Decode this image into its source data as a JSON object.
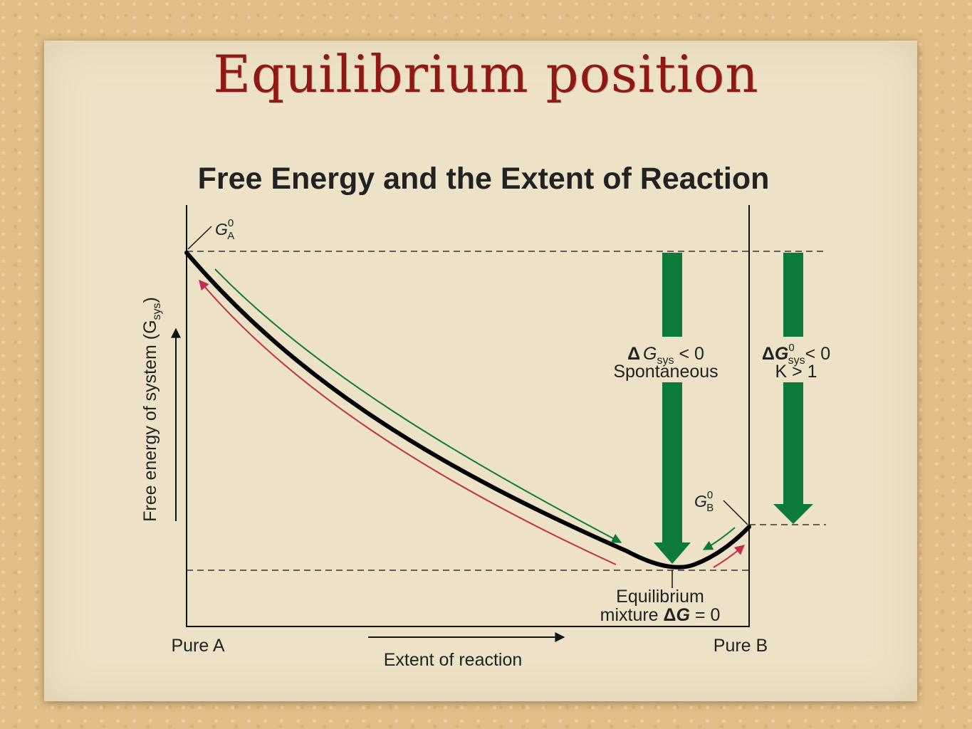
{
  "slide": {
    "title": "Equilibrium position"
  },
  "diagram": {
    "heading": "Free Energy and the Extent of Reaction",
    "y_axis_label": "Free energy of system (G",
    "y_axis_label_sub": "sys",
    "y_axis_label_end": ")",
    "x_axis_label": "Extent of reaction",
    "left_end_label": "Pure A",
    "right_end_label": "Pure B",
    "ga_label": "G",
    "ga_sub": "A",
    "ga_sup": "0",
    "gb_label": "G",
    "gb_sub": "B",
    "gb_sup": "0",
    "spontaneous": {
      "delta": "Δ",
      "g": "G",
      "sub": "sys",
      "rel": " < 0",
      "line2": "Spontaneous"
    },
    "standard": {
      "delta": "Δ",
      "g": "G",
      "sup": "0",
      "sub": "sys",
      "rel": "< 0",
      "line2": "K > 1"
    },
    "equilibrium": {
      "line1": "Equilibrium",
      "line2_prefix": "mixture ",
      "delta": "Δ",
      "g": "G",
      "line2_suffix": " = 0"
    },
    "colors": {
      "curve": "#000000",
      "green_arrows": "#0b7a3a",
      "red_arrows": "#c0304a",
      "title": "#8f1a14"
    }
  }
}
